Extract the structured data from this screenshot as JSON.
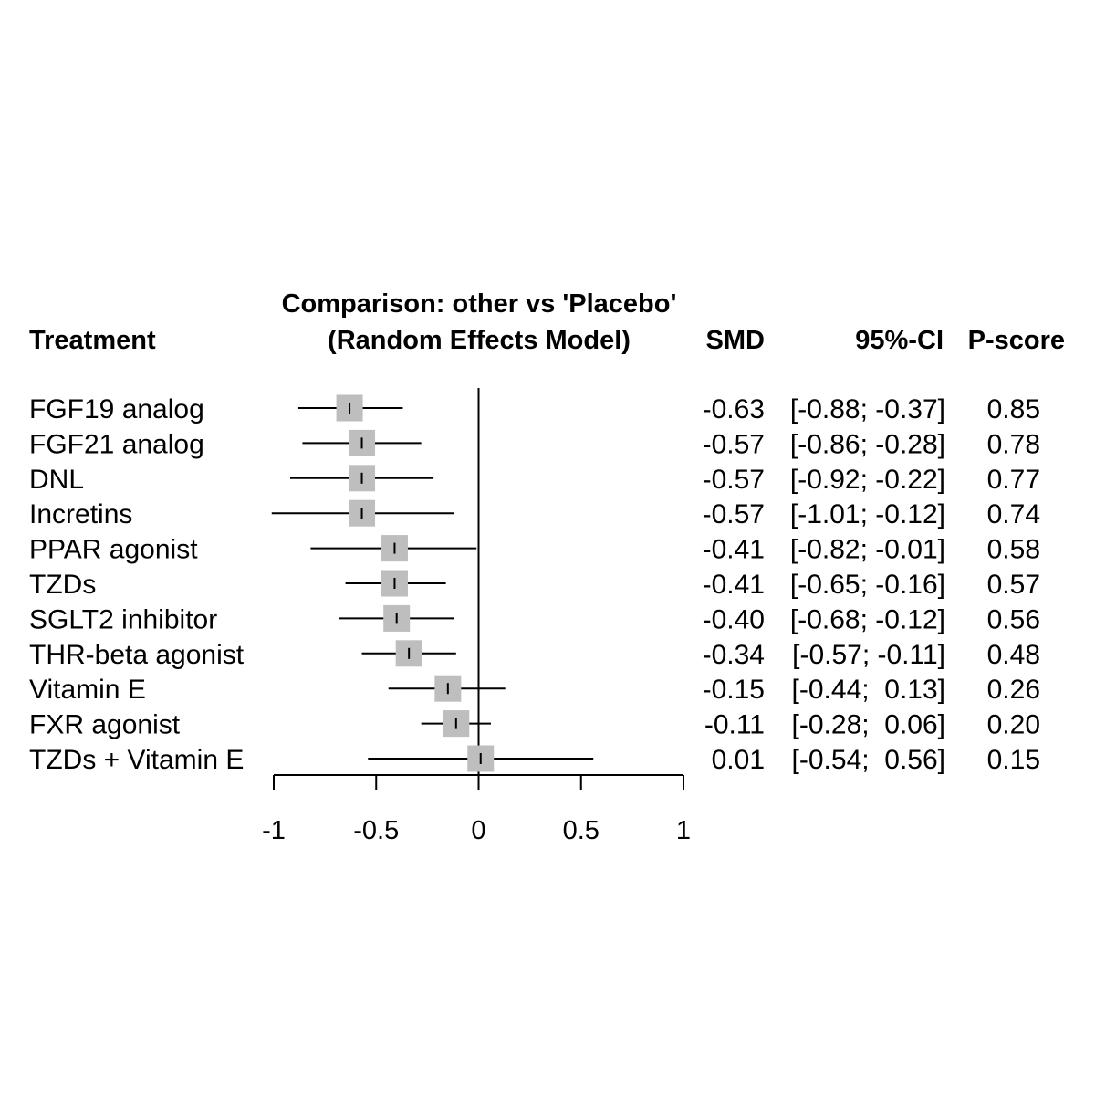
{
  "chart_data": {
    "type": "forest",
    "title_line1": "Comparison: other vs 'Placebo'",
    "title_line2": "(Random Effects Model)",
    "columns": {
      "treatment": "Treatment",
      "smd": "SMD",
      "ci": "95%-CI",
      "pscore": "P-score"
    },
    "xlim": [
      -1,
      1
    ],
    "ticks": [
      -1,
      -0.5,
      0,
      0.5,
      1
    ],
    "tick_labels": [
      "-1",
      "-0.5",
      "0",
      "0.5",
      "1"
    ],
    "reference_line": 0,
    "marker_color": "#bebebe",
    "rows": [
      {
        "treatment": "FGF19 analog",
        "smd": -0.63,
        "lower": -0.88,
        "upper": -0.37,
        "smd_text": "-0.63",
        "ci_text": "[-0.88; -0.37]",
        "pscore": "0.85"
      },
      {
        "treatment": "FGF21 analog",
        "smd": -0.57,
        "lower": -0.86,
        "upper": -0.28,
        "smd_text": "-0.57",
        "ci_text": "[-0.86; -0.28]",
        "pscore": "0.78"
      },
      {
        "treatment": "DNL",
        "smd": -0.57,
        "lower": -0.92,
        "upper": -0.22,
        "smd_text": "-0.57",
        "ci_text": "[-0.92; -0.22]",
        "pscore": "0.77"
      },
      {
        "treatment": "Incretins",
        "smd": -0.57,
        "lower": -1.01,
        "upper": -0.12,
        "smd_text": "-0.57",
        "ci_text": "[-1.01; -0.12]",
        "pscore": "0.74"
      },
      {
        "treatment": "PPAR agonist",
        "smd": -0.41,
        "lower": -0.82,
        "upper": -0.01,
        "smd_text": "-0.41",
        "ci_text": "[-0.82; -0.01]",
        "pscore": "0.58"
      },
      {
        "treatment": "TZDs",
        "smd": -0.41,
        "lower": -0.65,
        "upper": -0.16,
        "smd_text": "-0.41",
        "ci_text": "[-0.65; -0.16]",
        "pscore": "0.57"
      },
      {
        "treatment": "SGLT2 inhibitor",
        "smd": -0.4,
        "lower": -0.68,
        "upper": -0.12,
        "smd_text": "-0.40",
        "ci_text": "[-0.68; -0.12]",
        "pscore": "0.56"
      },
      {
        "treatment": "THR-beta agonist",
        "smd": -0.34,
        "lower": -0.57,
        "upper": -0.11,
        "smd_text": "-0.34",
        "ci_text": "[-0.57; -0.11]",
        "pscore": "0.48"
      },
      {
        "treatment": "Vitamin E",
        "smd": -0.15,
        "lower": -0.44,
        "upper": 0.13,
        "smd_text": "-0.15",
        "ci_text": "[-0.44;  0.13]",
        "pscore": "0.26"
      },
      {
        "treatment": "FXR agonist",
        "smd": -0.11,
        "lower": -0.28,
        "upper": 0.06,
        "smd_text": "-0.11",
        "ci_text": "[-0.28;  0.06]",
        "pscore": "0.20"
      },
      {
        "treatment": "TZDs + Vitamin E",
        "smd": 0.01,
        "lower": -0.54,
        "upper": 0.56,
        "smd_text": "0.01",
        "ci_text": "[-0.54;  0.56]",
        "pscore": "0.15"
      }
    ]
  }
}
